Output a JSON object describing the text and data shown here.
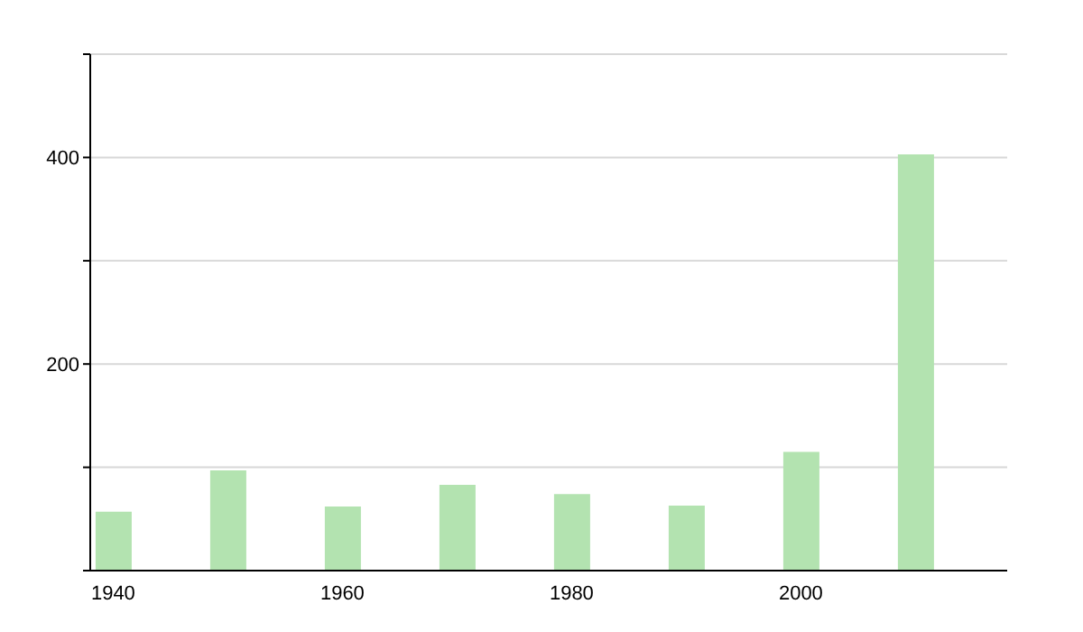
{
  "chart_data": {
    "type": "bar",
    "x": [
      1940,
      1950,
      1960,
      1970,
      1980,
      1990,
      2000,
      2010
    ],
    "values": [
      57,
      97,
      62,
      83,
      74,
      63,
      115,
      403
    ],
    "color": "#b3e3b0",
    "xlim": [
      1938,
      2018
    ],
    "xticks": [
      1940,
      1960,
      1980,
      2000
    ],
    "ylim": [
      0,
      500
    ],
    "yticks": [
      {
        "value": 0,
        "label": null
      },
      {
        "value": 100,
        "label": null
      },
      200,
      {
        "value": 300,
        "label": null
      },
      400,
      {
        "value": 500,
        "label": null
      }
    ],
    "grid": "y"
  }
}
